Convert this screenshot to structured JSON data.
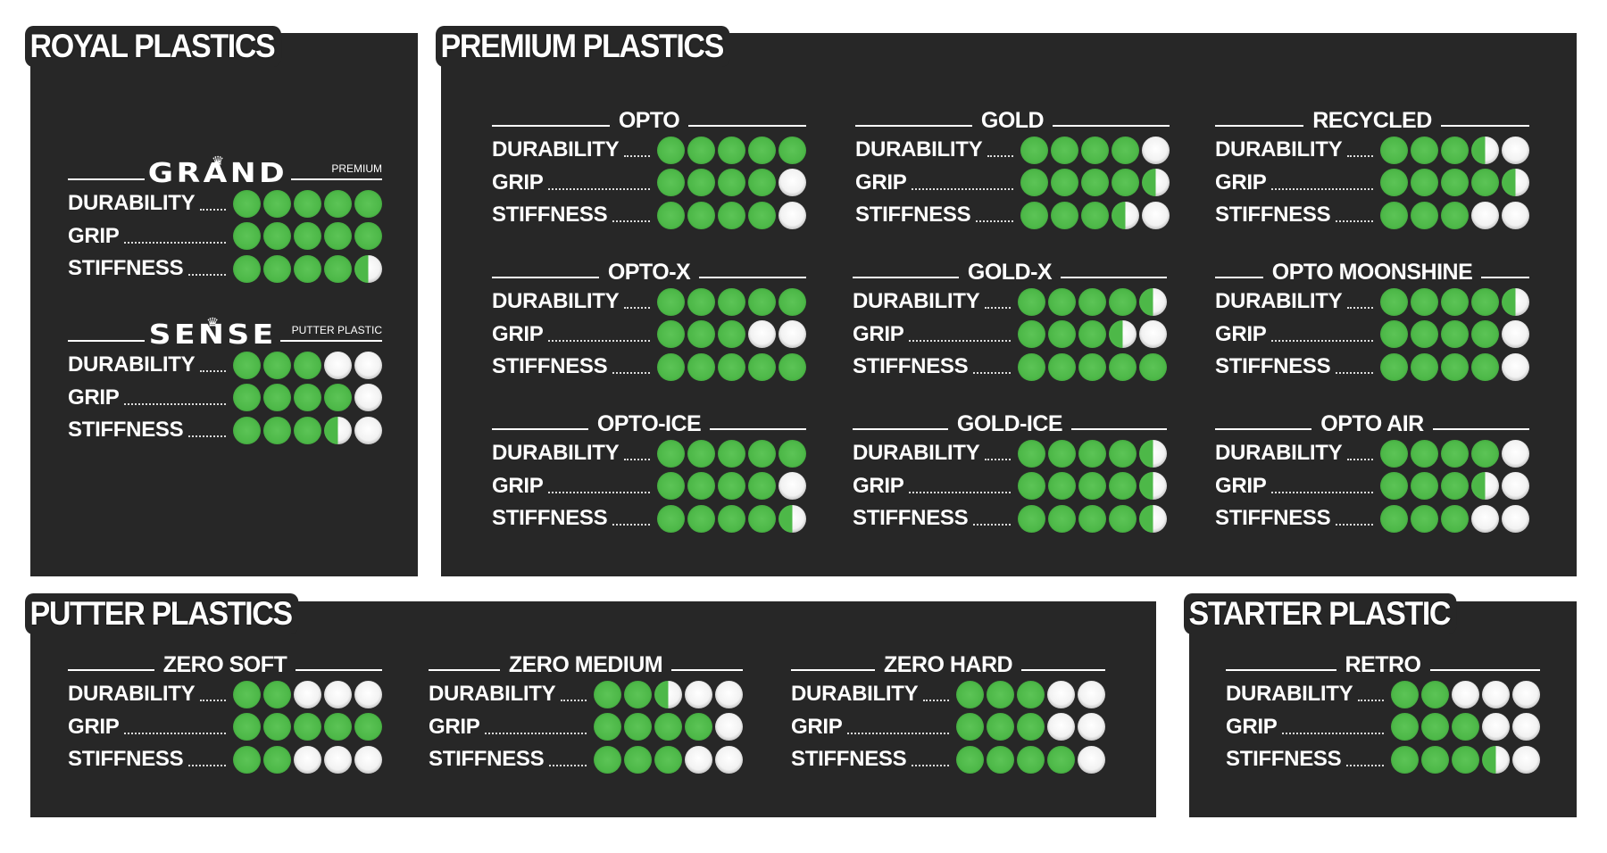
{
  "colors": {
    "panel": "#272727",
    "filled": "#4db848",
    "empty": "#f2f2f2",
    "text": "#ffffff"
  },
  "stat_labels": [
    "DURABILITY",
    "GRIP",
    "STIFFNESS"
  ],
  "sections": [
    {
      "title": "ROYAL PLASTICS",
      "discs": [
        {
          "name": "GRAND",
          "logo": true,
          "icon": "crown-icon",
          "subtitle": "PREMIUM",
          "ratings": [
            5,
            5,
            4.5
          ]
        },
        {
          "name": "SENSE",
          "logo": true,
          "icon": "crown-icon",
          "subtitle": "PUTTER PLASTIC",
          "ratings": [
            3,
            4,
            3.5
          ]
        }
      ]
    },
    {
      "title": "PREMIUM PLASTICS",
      "discs": [
        {
          "name": "OPTO",
          "ratings": [
            5,
            4,
            4
          ]
        },
        {
          "name": "GOLD",
          "ratings": [
            4,
            4.5,
            3.5
          ]
        },
        {
          "name": "RECYCLED",
          "ratings": [
            3.5,
            4.5,
            3
          ]
        },
        {
          "name": "OPTO-X",
          "ratings": [
            5,
            3,
            5
          ]
        },
        {
          "name": "GOLD-X",
          "ratings": [
            4.5,
            3.5,
            5
          ]
        },
        {
          "name": "OPTO MOONSHINE",
          "ratings": [
            4.5,
            4,
            4
          ]
        },
        {
          "name": "OPTO-ICE",
          "ratings": [
            5,
            4,
            4.5
          ]
        },
        {
          "name": "GOLD-ICE",
          "ratings": [
            4.5,
            4.5,
            4.5
          ]
        },
        {
          "name": "OPTO AIR",
          "ratings": [
            4,
            3.5,
            3
          ]
        }
      ]
    },
    {
      "title": "PUTTER PLASTICS",
      "discs": [
        {
          "name": "ZERO SOFT",
          "ratings": [
            2,
            5,
            2
          ]
        },
        {
          "name": "ZERO MEDIUM",
          "ratings": [
            2.5,
            4,
            3
          ]
        },
        {
          "name": "ZERO HARD",
          "ratings": [
            3,
            3,
            4
          ]
        }
      ]
    },
    {
      "title": "STARTER PLASTIC",
      "discs": [
        {
          "name": "RETRO",
          "ratings": [
            2,
            3,
            3.5
          ]
        }
      ]
    }
  ]
}
